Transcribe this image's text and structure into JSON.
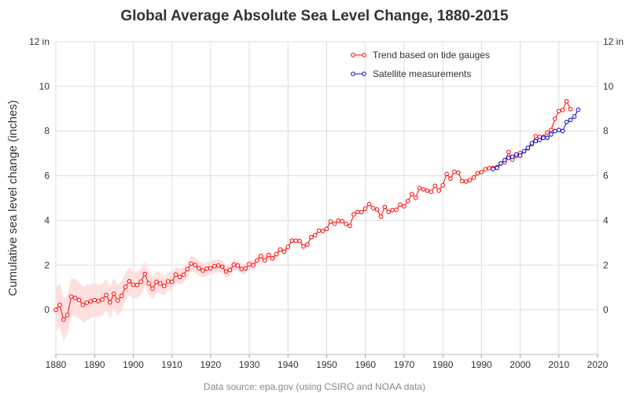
{
  "chart_data": {
    "type": "line",
    "title": "Global Average Absolute Sea Level Change, 1880-2015",
    "ylabel": "Cumulative sea level change (inches)",
    "xlabel": "",
    "xlim": [
      1880,
      2020
    ],
    "ylim": [
      -2,
      12
    ],
    "x_ticks": [
      1880,
      1890,
      1900,
      1910,
      1920,
      1930,
      1940,
      1950,
      1960,
      1970,
      1980,
      1990,
      2000,
      2010,
      2020
    ],
    "y_ticks": [
      0,
      2,
      4,
      6,
      8,
      10,
      12
    ],
    "y_tick_labels": [
      "0",
      "2",
      "4",
      "6",
      "8",
      "10",
      "12 in"
    ],
    "grid": true,
    "legend_position": "top-center",
    "footnote": "Data source: epa.gov (using CSIRO and NOAA data)",
    "series": [
      {
        "name": "Trend based on tide gauges",
        "color": "#ff0000",
        "band_color": "#ffe0e0",
        "x": [
          1880,
          1881,
          1882,
          1883,
          1884,
          1885,
          1886,
          1887,
          1888,
          1889,
          1890,
          1891,
          1892,
          1893,
          1894,
          1895,
          1896,
          1897,
          1898,
          1899,
          1900,
          1901,
          1902,
          1903,
          1904,
          1905,
          1906,
          1907,
          1908,
          1909,
          1910,
          1911,
          1912,
          1913,
          1914,
          1915,
          1916,
          1917,
          1918,
          1919,
          1920,
          1921,
          1922,
          1923,
          1924,
          1925,
          1926,
          1927,
          1928,
          1929,
          1930,
          1931,
          1932,
          1933,
          1934,
          1935,
          1936,
          1937,
          1938,
          1939,
          1940,
          1941,
          1942,
          1943,
          1944,
          1945,
          1946,
          1947,
          1948,
          1949,
          1950,
          1951,
          1952,
          1953,
          1954,
          1955,
          1956,
          1957,
          1958,
          1959,
          1960,
          1961,
          1962,
          1963,
          1964,
          1965,
          1966,
          1967,
          1968,
          1969,
          1970,
          1971,
          1972,
          1973,
          1974,
          1975,
          1976,
          1977,
          1978,
          1979,
          1980,
          1981,
          1982,
          1983,
          1984,
          1985,
          1986,
          1987,
          1988,
          1989,
          1990,
          1991,
          1992,
          1993,
          1994,
          1995,
          1996,
          1997,
          1998,
          1999,
          2000,
          2001,
          2002,
          2003,
          2004,
          2005,
          2006,
          2007,
          2008,
          2009,
          2010,
          2011,
          2012,
          2013
        ],
        "y": [
          0.0,
          0.22,
          -0.44,
          -0.23,
          0.59,
          0.53,
          0.44,
          0.22,
          0.32,
          0.38,
          0.44,
          0.39,
          0.46,
          0.66,
          0.33,
          0.72,
          0.42,
          0.62,
          1.02,
          1.28,
          1.12,
          1.11,
          1.26,
          1.6,
          1.18,
          0.95,
          1.25,
          1.18,
          1.07,
          1.27,
          1.25,
          1.58,
          1.47,
          1.57,
          1.82,
          2.07,
          2.0,
          1.86,
          1.76,
          1.84,
          1.86,
          1.95,
          1.98,
          1.93,
          1.71,
          1.78,
          2.02,
          1.98,
          1.83,
          1.85,
          2.04,
          1.99,
          2.21,
          2.4,
          2.21,
          2.45,
          2.3,
          2.49,
          2.7,
          2.6,
          2.82,
          3.1,
          3.09,
          3.08,
          2.84,
          2.92,
          3.25,
          3.34,
          3.54,
          3.53,
          3.62,
          3.95,
          3.85,
          3.99,
          3.96,
          3.84,
          3.76,
          4.27,
          4.38,
          4.37,
          4.53,
          4.73,
          4.55,
          4.49,
          4.17,
          4.6,
          4.39,
          4.46,
          4.47,
          4.71,
          4.63,
          4.87,
          5.18,
          5.01,
          5.45,
          5.39,
          5.34,
          5.28,
          5.55,
          5.34,
          5.57,
          6.08,
          5.87,
          6.18,
          6.14,
          5.76,
          5.74,
          5.8,
          5.92,
          6.11,
          6.16,
          6.29,
          6.34,
          6.34,
          6.39,
          6.55,
          6.61,
          7.06,
          6.72,
          6.88,
          7.01,
          7.09,
          7.23,
          7.41,
          7.77,
          7.74,
          7.74,
          7.93,
          8.05,
          8.55,
          8.89,
          8.94,
          9.33,
          8.98
        ],
        "lower": [
          -0.95,
          -0.78,
          -1.4,
          -1.12,
          -0.24,
          -0.31,
          -0.36,
          -0.58,
          -0.47,
          -0.39,
          -0.3,
          -0.33,
          -0.26,
          -0.05,
          -0.38,
          0.02,
          -0.25,
          -0.05,
          0.38,
          0.66,
          0.52,
          0.52,
          0.68,
          1.06,
          0.67,
          0.45,
          0.77,
          0.72,
          0.63,
          0.85,
          0.85,
          1.2,
          1.1,
          1.21,
          1.46,
          1.72,
          1.66,
          1.53,
          1.44,
          1.53,
          1.56,
          1.66,
          1.69,
          1.65,
          1.44,
          1.52,
          1.77,
          1.74,
          1.6,
          1.63,
          1.83,
          1.8,
          2.03,
          2.23,
          2.05,
          2.3,
          2.16,
          2.36,
          2.58,
          2.49,
          2.71,
          3.0,
          3.0,
          2.99,
          2.76,
          2.85,
          3.19,
          3.28,
          3.49,
          3.48,
          3.57,
          3.9,
          3.81,
          3.95,
          3.92,
          3.81,
          3.74,
          4.25,
          4.36,
          4.35,
          4.51,
          4.71,
          4.53,
          4.47,
          4.15,
          4.58,
          4.37,
          4.44,
          4.45,
          4.69,
          4.61,
          4.85,
          5.16,
          4.99,
          5.43,
          5.37,
          5.32,
          5.26,
          5.53,
          5.32,
          5.55,
          6.06,
          5.85,
          6.16,
          6.12,
          5.74,
          5.72,
          5.78,
          5.9,
          6.09,
          6.14,
          6.27,
          6.32,
          6.32,
          6.37,
          6.53,
          6.59,
          7.04,
          6.7,
          6.86,
          6.99,
          7.07,
          7.21,
          7.39,
          7.75,
          7.72,
          7.72,
          7.91,
          8.03,
          8.53,
          8.87,
          8.92,
          9.31,
          8.96
        ],
        "upper": [
          0.95,
          1.22,
          0.52,
          0.66,
          1.42,
          1.37,
          1.24,
          1.02,
          1.11,
          1.15,
          1.18,
          1.11,
          1.18,
          1.37,
          1.04,
          1.42,
          1.09,
          1.29,
          1.66,
          1.9,
          1.72,
          1.7,
          1.84,
          2.14,
          1.69,
          1.45,
          1.73,
          1.64,
          1.51,
          1.69,
          1.65,
          1.96,
          1.84,
          1.93,
          2.18,
          2.42,
          2.34,
          2.19,
          2.08,
          2.15,
          2.16,
          2.24,
          2.27,
          2.21,
          1.98,
          2.04,
          2.27,
          2.22,
          2.06,
          2.07,
          2.25,
          2.18,
          2.39,
          2.57,
          2.37,
          2.6,
          2.44,
          2.62,
          2.82,
          2.71,
          2.93,
          3.2,
          3.18,
          3.17,
          2.92,
          2.99,
          3.31,
          3.4,
          3.59,
          3.58,
          3.67,
          4.0,
          3.89,
          4.03,
          4.0,
          3.87,
          3.78,
          4.29,
          4.4,
          4.39,
          4.55,
          4.75,
          4.57,
          4.51,
          4.19,
          4.62,
          4.41,
          4.48,
          4.49,
          4.73,
          4.65,
          4.89,
          5.2,
          5.03,
          5.47,
          5.41,
          5.36,
          5.3,
          5.57,
          5.36,
          5.59,
          6.1,
          5.89,
          6.2,
          6.16,
          5.78,
          5.76,
          5.82,
          5.94,
          6.13,
          6.18,
          6.31,
          6.36,
          6.36,
          6.41,
          6.57,
          6.63,
          7.08,
          6.74,
          6.9,
          7.03,
          7.11,
          7.25,
          7.43,
          7.79,
          7.76,
          7.76,
          7.95,
          8.07,
          8.57,
          8.91,
          8.96,
          9.35,
          9.0
        ]
      },
      {
        "name": "Satellite measurements",
        "color": "#0000cc",
        "x": [
          1993,
          1994,
          1995,
          1996,
          1997,
          1998,
          1999,
          2000,
          2001,
          2002,
          2003,
          2004,
          2005,
          2006,
          2007,
          2008,
          2009,
          2010,
          2011,
          2012,
          2013,
          2014,
          2015
        ],
        "y": [
          6.3,
          6.35,
          6.55,
          6.7,
          6.8,
          6.85,
          6.95,
          6.9,
          7.1,
          7.25,
          7.45,
          7.55,
          7.6,
          7.7,
          7.7,
          7.85,
          8.0,
          8.05,
          8.0,
          8.4,
          8.5,
          8.65,
          8.95
        ]
      }
    ]
  }
}
